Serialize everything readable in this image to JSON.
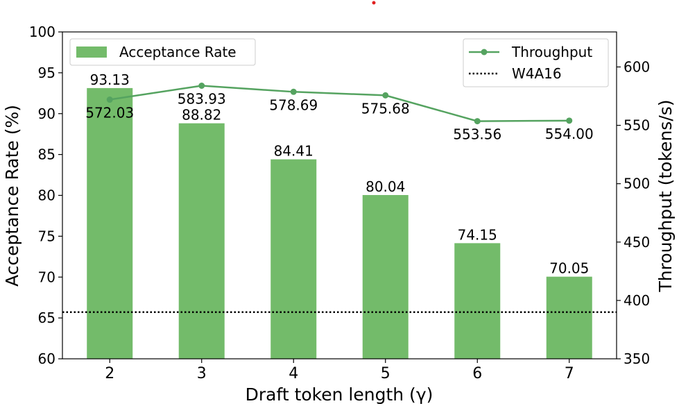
{
  "chart_data": {
    "type": "bar+line",
    "categories": [
      "2",
      "3",
      "4",
      "5",
      "6",
      "7"
    ],
    "bar_series": {
      "name": "Acceptance Rate",
      "values": [
        93.13,
        88.82,
        84.41,
        80.04,
        74.15,
        70.05
      ],
      "labels": [
        "93.13",
        "88.82",
        "84.41",
        "80.04",
        "74.15",
        "70.05"
      ],
      "color": "#73bb6a"
    },
    "line_series": {
      "name": "Throughput",
      "values": [
        572.03,
        583.93,
        578.69,
        575.68,
        553.56,
        554.0
      ],
      "labels": [
        "572.03",
        "583.93",
        "578.69",
        "575.68",
        "553.56",
        "554.00"
      ],
      "color": "#55a360"
    },
    "reference_line": {
      "name": "W4A16",
      "value": 390,
      "style": "dotted",
      "color": "#000000"
    },
    "xlabel": "Draft token length (γ)",
    "ylabel_left": "Acceptance Rate (%)",
    "ylabel_right": "Throughput (tokens/s)",
    "ylim_left": [
      60,
      100
    ],
    "ylim_right": [
      350,
      630
    ],
    "yticks_left": [
      60,
      65,
      70,
      75,
      80,
      85,
      90,
      95,
      100
    ],
    "yticks_right": [
      350,
      400,
      450,
      500,
      550,
      600
    ],
    "legend_left": "top-left",
    "legend_right": "top-right",
    "grid": false
  }
}
